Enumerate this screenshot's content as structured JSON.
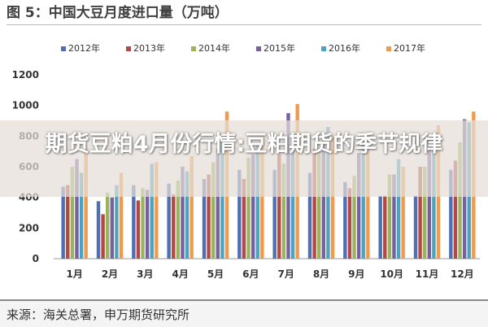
{
  "figure_title": "图 5：中国大豆月度进口量（万吨）",
  "overlay_title": "期货豆粕4月份行情:豆粕期货的季节规律",
  "source": "来源：海关总署，申万期货研究所",
  "chart_data": {
    "type": "bar",
    "title": "图 5：中国大豆月度进口量（万吨）",
    "xlabel": "",
    "ylabel": "",
    "ylim": [
      0,
      1200
    ],
    "yticks": [
      0,
      200,
      400,
      600,
      800,
      1000,
      1200
    ],
    "grid": false,
    "legend_position": "top",
    "categories": [
      "1月",
      "2月",
      "3月",
      "4月",
      "5月",
      "6月",
      "7月",
      "8月",
      "9月",
      "10月",
      "11月",
      "12月"
    ],
    "series": [
      {
        "name": "2012年",
        "color": "#4f6fb3",
        "values": [
          470,
          375,
          480,
          490,
          520,
          580,
          580,
          560,
          500,
          410,
          410,
          580
        ]
      },
      {
        "name": "2013年",
        "color": "#b34846",
        "values": [
          480,
          290,
          380,
          420,
          550,
          520,
          680,
          720,
          460,
          410,
          600,
          640
        ]
      },
      {
        "name": "2014年",
        "color": "#9bb35c",
        "values": [
          600,
          430,
          460,
          510,
          630,
          660,
          620,
          700,
          540,
          550,
          600,
          760
        ]
      },
      {
        "name": "2015年",
        "color": "#7660a0",
        "values": [
          650,
          400,
          450,
          600,
          720,
          680,
          950,
          770,
          690,
          550,
          780,
          910
        ]
      },
      {
        "name": "2016年",
        "color": "#4aa3c0",
        "values": [
          560,
          480,
          620,
          570,
          780,
          740,
          800,
          860,
          780,
          650,
          790,
          890
        ]
      },
      {
        "name": "2017年",
        "color": "#f29a4c",
        "values": [
          720,
          560,
          630,
          670,
          960,
          800,
          1010,
          800,
          820,
          600,
          870,
          960
        ]
      }
    ]
  }
}
